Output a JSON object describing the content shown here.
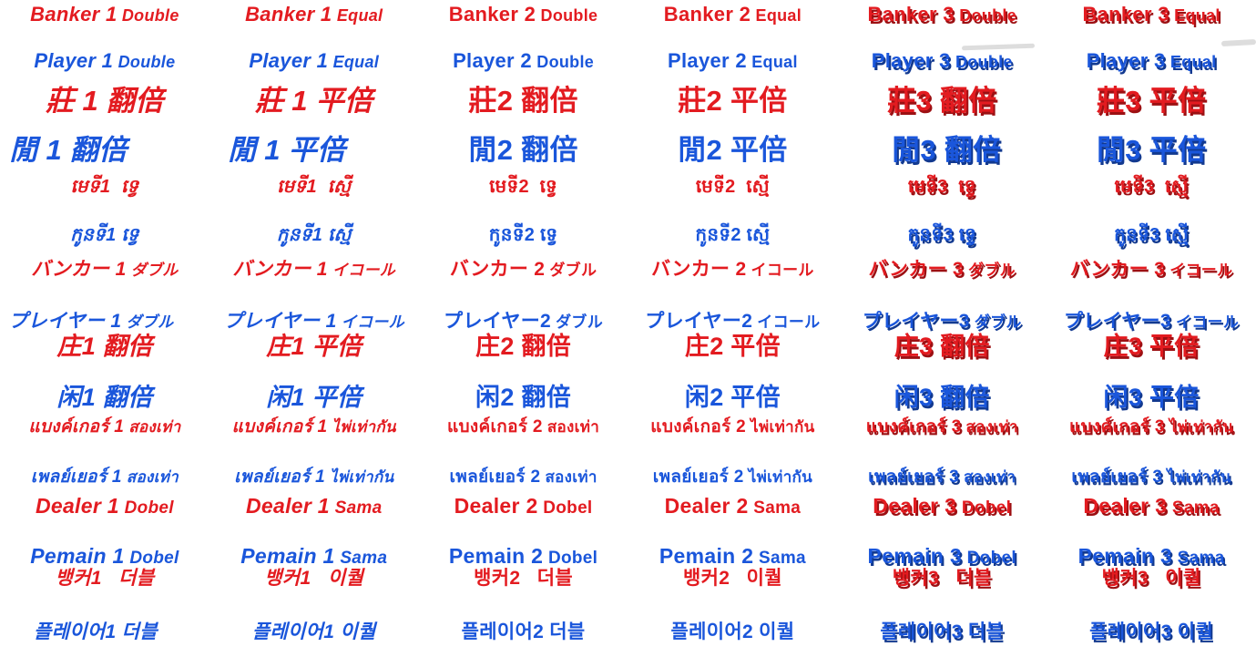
{
  "colors": {
    "red": "#e31b20",
    "blue": "#1a56db",
    "red_shadow": "#9c1013",
    "blue_shadow": "#12398f",
    "background": "#ffffff"
  },
  "columns": [
    {
      "id": "1-double"
    },
    {
      "id": "1-equal"
    },
    {
      "id": "2-double"
    },
    {
      "id": "2-equal"
    },
    {
      "id": "3-double"
    },
    {
      "id": "3-equal"
    }
  ],
  "rows": [
    {
      "id": "en-banker",
      "lang": "english",
      "side": "banker",
      "color": "red",
      "cells": [
        {
          "m": "Banker 1",
          "s": "Double"
        },
        {
          "m": "Banker 1",
          "s": "Equal"
        },
        {
          "m": "Banker 2",
          "s": "Double"
        },
        {
          "m": "Banker 2",
          "s": "Equal"
        },
        {
          "m": "Banker 3",
          "s": "Double"
        },
        {
          "m": "Banker 3",
          "s": "Equal"
        }
      ]
    },
    {
      "id": "en-player",
      "lang": "english",
      "side": "player",
      "color": "blue",
      "cells": [
        {
          "m": "Player 1",
          "s": "Double"
        },
        {
          "m": "Player 1",
          "s": "Equal"
        },
        {
          "m": "Player 2",
          "s": "Double"
        },
        {
          "m": "Player 2",
          "s": "Equal"
        },
        {
          "m": "Player 3",
          "s": "Double"
        },
        {
          "m": "Player 3",
          "s": "Equal"
        }
      ]
    },
    {
      "id": "tw-banker",
      "lang": "chinese-traditional",
      "side": "banker",
      "color": "red",
      "cells": [
        {
          "m": "莊 1 翻倍",
          "s": ""
        },
        {
          "m": "莊 1 平倍",
          "s": ""
        },
        {
          "m": "莊2 翻倍",
          "s": ""
        },
        {
          "m": "莊2 平倍",
          "s": ""
        },
        {
          "m": "莊3 翻倍",
          "s": ""
        },
        {
          "m": "莊3 平倍",
          "s": ""
        }
      ]
    },
    {
      "id": "tw-player",
      "lang": "chinese-traditional",
      "side": "player",
      "color": "blue",
      "cells": [
        {
          "m": "閒 1 翻倍",
          "s": ""
        },
        {
          "m": "閒 1 平倍",
          "s": ""
        },
        {
          "m": "閒2 翻倍",
          "s": ""
        },
        {
          "m": "閒2 平倍",
          "s": ""
        },
        {
          "m": "閒3 翻倍",
          "s": ""
        },
        {
          "m": "閒3 平倍",
          "s": ""
        }
      ]
    },
    {
      "id": "km-banker",
      "lang": "khmer",
      "side": "banker",
      "color": "red",
      "cells": [
        {
          "m": "មេទី1  ទ្វេ",
          "s": ""
        },
        {
          "m": "មេទី1  ស្មើ",
          "s": ""
        },
        {
          "m": "មេទី2  ទ្វេ",
          "s": ""
        },
        {
          "m": "មេទី2  ស្មើ",
          "s": ""
        },
        {
          "m": "មេទី3  ទ្វេ",
          "s": ""
        },
        {
          "m": "មេទី3  ស្មើ",
          "s": ""
        }
      ]
    },
    {
      "id": "km-player",
      "lang": "khmer",
      "side": "player",
      "color": "blue",
      "cells": [
        {
          "m": "កូនទី1 ទ្វេ",
          "s": ""
        },
        {
          "m": "កូនទី1 ស្មើ",
          "s": ""
        },
        {
          "m": "កូនទី2 ទ្វេ",
          "s": ""
        },
        {
          "m": "កូនទី2 ស្មើ",
          "s": ""
        },
        {
          "m": "កូនទី3 ទ្វេ",
          "s": ""
        },
        {
          "m": "កូនទី3 ស្មើ",
          "s": ""
        }
      ]
    },
    {
      "id": "ja-banker",
      "lang": "japanese",
      "side": "banker",
      "color": "red",
      "cells": [
        {
          "m": "バンカー 1",
          "s": "ダブル"
        },
        {
          "m": "バンカー 1",
          "s": "イコール"
        },
        {
          "m": "バンカー 2",
          "s": "ダブル"
        },
        {
          "m": "バンカー 2",
          "s": "イコール"
        },
        {
          "m": "バンカー 3",
          "s": "ダブル"
        },
        {
          "m": "バンカー 3",
          "s": "イコール"
        }
      ]
    },
    {
      "id": "ja-player",
      "lang": "japanese",
      "side": "player",
      "color": "blue",
      "cells": [
        {
          "m": "プレイヤー 1",
          "s": "ダブル"
        },
        {
          "m": "プレイヤー 1",
          "s": "イコール"
        },
        {
          "m": "プレイヤー2",
          "s": "ダブル"
        },
        {
          "m": "プレイヤー2",
          "s": "イコール"
        },
        {
          "m": "プレイヤー3",
          "s": "ダブル"
        },
        {
          "m": "プレイヤー3",
          "s": "イコール"
        }
      ]
    },
    {
      "id": "cn-banker",
      "lang": "chinese-simplified",
      "side": "banker",
      "color": "red",
      "cells": [
        {
          "m": "庄1 翻倍",
          "s": ""
        },
        {
          "m": "庄1 平倍",
          "s": ""
        },
        {
          "m": "庄2 翻倍",
          "s": ""
        },
        {
          "m": "庄2 平倍",
          "s": ""
        },
        {
          "m": "庄3 翻倍",
          "s": ""
        },
        {
          "m": "庄3 平倍",
          "s": ""
        }
      ]
    },
    {
      "id": "cn-player",
      "lang": "chinese-simplified",
      "side": "player",
      "color": "blue",
      "cells": [
        {
          "m": "闲1 翻倍",
          "s": ""
        },
        {
          "m": "闲1 平倍",
          "s": ""
        },
        {
          "m": "闲2 翻倍",
          "s": ""
        },
        {
          "m": "闲2 平倍",
          "s": ""
        },
        {
          "m": "闲3 翻倍",
          "s": ""
        },
        {
          "m": "闲3 平倍",
          "s": ""
        }
      ]
    },
    {
      "id": "th-banker",
      "lang": "thai",
      "side": "banker",
      "color": "red",
      "cells": [
        {
          "m": "แบงค์เกอร์ 1",
          "s": "สองเท่า"
        },
        {
          "m": "แบงค์เกอร์ 1",
          "s": "ไพ่เท่ากัน"
        },
        {
          "m": "แบงค์เกอร์ 2",
          "s": "สองเท่า"
        },
        {
          "m": "แบงค์เกอร์ 2",
          "s": "ไพ่เท่ากัน"
        },
        {
          "m": "แบงค์เกอร์ 3",
          "s": "สองเท่า"
        },
        {
          "m": "แบงค์เกอร์ 3",
          "s": "ไพ่เท่ากัน"
        }
      ]
    },
    {
      "id": "th-player",
      "lang": "thai",
      "side": "player",
      "color": "blue",
      "cells": [
        {
          "m": "เพลย์เยอร์ 1",
          "s": "สองเท่า"
        },
        {
          "m": "เพลย์เยอร์ 1",
          "s": "ไพ่เท่ากัน"
        },
        {
          "m": "เพลย์เยอร์ 2",
          "s": "สองเท่า"
        },
        {
          "m": "เพลย์เยอร์ 2",
          "s": "ไพ่เท่ากัน"
        },
        {
          "m": "เพลย์เยอร์ 3",
          "s": "สองเท่า"
        },
        {
          "m": "เพลย์เยอร์ 3",
          "s": "ไพ่เท่ากัน"
        }
      ]
    },
    {
      "id": "id-banker",
      "lang": "indonesian",
      "side": "banker",
      "color": "red",
      "cells": [
        {
          "m": "Dealer 1",
          "s": "Dobel"
        },
        {
          "m": "Dealer 1",
          "s": "Sama"
        },
        {
          "m": "Dealer 2",
          "s": "Dobel"
        },
        {
          "m": "Dealer 2",
          "s": "Sama"
        },
        {
          "m": "Dealer 3",
          "s": "Dobel"
        },
        {
          "m": "Dealer 3",
          "s": "Sama"
        }
      ]
    },
    {
      "id": "id-player",
      "lang": "indonesian",
      "side": "player",
      "color": "blue",
      "cells": [
        {
          "m": "Pemain 1",
          "s": "Dobel"
        },
        {
          "m": "Pemain 1",
          "s": "Sama"
        },
        {
          "m": "Pemain 2",
          "s": "Dobel"
        },
        {
          "m": "Pemain 2",
          "s": "Sama"
        },
        {
          "m": "Pemain 3",
          "s": "Dobel"
        },
        {
          "m": "Pemain 3",
          "s": "Sama"
        }
      ]
    },
    {
      "id": "ko-banker",
      "lang": "korean",
      "side": "banker",
      "color": "red",
      "cells": [
        {
          "m": "뱅커1   더블",
          "s": ""
        },
        {
          "m": "뱅커1   이퀄",
          "s": ""
        },
        {
          "m": "뱅커2   더블",
          "s": ""
        },
        {
          "m": "뱅커2   이퀄",
          "s": ""
        },
        {
          "m": "뱅커3   더블",
          "s": ""
        },
        {
          "m": "뱅커3   이퀄",
          "s": ""
        }
      ]
    },
    {
      "id": "ko-player",
      "lang": "korean",
      "side": "player",
      "color": "blue",
      "cells": [
        {
          "m": "플레이어1 더블",
          "s": ""
        },
        {
          "m": "플레이어1 이퀄",
          "s": ""
        },
        {
          "m": "플레이어2 더블",
          "s": ""
        },
        {
          "m": "플레이어2 이퀄",
          "s": ""
        },
        {
          "m": "플레이어3 더블",
          "s": ""
        },
        {
          "m": "플레이어3 이퀄",
          "s": ""
        }
      ]
    }
  ]
}
